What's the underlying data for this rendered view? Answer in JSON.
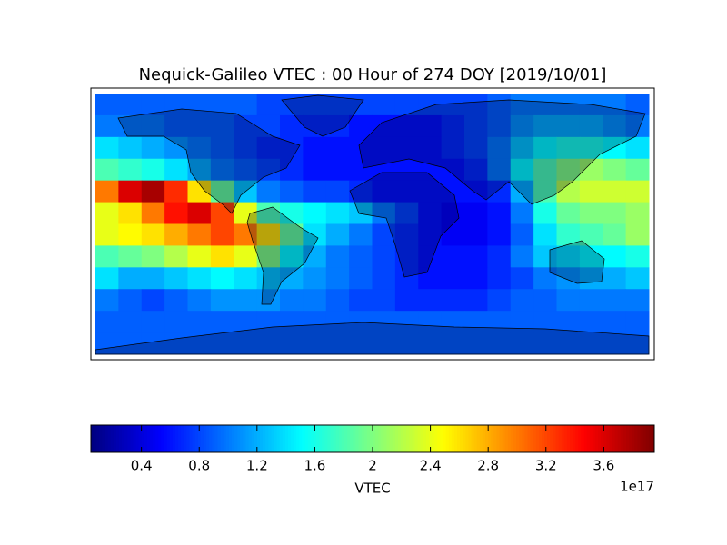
{
  "chart_data": {
    "type": "heatmap",
    "title": "Nequick-Galileo VTEC : 00 Hour of 274 DOY [2019/10/01]",
    "values": [
      [
        0.9,
        0.9,
        0.9,
        0.9,
        0.9,
        0.9,
        0.9,
        0.8,
        0.8,
        0.8,
        0.8,
        0.8,
        0.8,
        0.8,
        0.8,
        0.8,
        0.8,
        0.9,
        1.0,
        1.0,
        1.0,
        1.0,
        1.0,
        0.9
      ],
      [
        1.0,
        1.0,
        1.0,
        0.9,
        0.9,
        0.9,
        0.8,
        0.8,
        0.7,
        0.7,
        0.7,
        0.6,
        0.6,
        0.6,
        0.6,
        0.7,
        0.8,
        0.9,
        1.1,
        1.2,
        1.2,
        1.2,
        1.1,
        1.0
      ],
      [
        1.4,
        1.3,
        1.2,
        1.1,
        1.0,
        0.9,
        0.8,
        0.7,
        0.7,
        0.6,
        0.6,
        0.6,
        0.6,
        0.6,
        0.6,
        0.7,
        0.8,
        1.0,
        1.3,
        1.5,
        1.6,
        1.6,
        1.5,
        1.4
      ],
      [
        1.8,
        1.7,
        1.6,
        1.4,
        1.2,
        1.0,
        0.9,
        0.8,
        0.7,
        0.6,
        0.6,
        0.6,
        0.6,
        0.6,
        0.6,
        0.6,
        0.7,
        1.0,
        1.5,
        1.8,
        2.0,
        2.1,
        2.0,
        1.9
      ],
      [
        3.0,
        3.6,
        3.8,
        3.3,
        2.6,
        1.9,
        1.3,
        1.0,
        0.9,
        0.8,
        0.8,
        0.7,
        0.6,
        0.6,
        0.6,
        0.6,
        0.6,
        0.7,
        1.2,
        1.8,
        2.2,
        2.3,
        2.3,
        2.3
      ],
      [
        2.4,
        2.6,
        3.0,
        3.4,
        3.6,
        3.2,
        2.4,
        1.8,
        1.6,
        1.5,
        1.4,
        1.3,
        1.0,
        0.8,
        0.6,
        0.5,
        0.5,
        0.6,
        1.0,
        1.6,
        1.9,
        2.0,
        2.0,
        2.1
      ],
      [
        2.4,
        2.5,
        2.6,
        2.8,
        3.0,
        3.2,
        3.0,
        2.6,
        1.9,
        1.4,
        1.2,
        1.0,
        0.8,
        0.7,
        0.6,
        0.5,
        0.5,
        0.6,
        0.9,
        1.4,
        1.7,
        1.8,
        1.9,
        2.1
      ],
      [
        1.8,
        1.9,
        2.0,
        2.2,
        2.4,
        2.6,
        2.4,
        2.0,
        1.5,
        1.2,
        1.0,
        0.9,
        0.8,
        0.7,
        0.6,
        0.6,
        0.6,
        0.7,
        1.0,
        1.3,
        1.4,
        1.5,
        1.5,
        1.6
      ],
      [
        1.4,
        1.2,
        1.2,
        1.3,
        1.4,
        1.5,
        1.4,
        1.3,
        1.2,
        1.1,
        1.0,
        0.9,
        0.8,
        0.7,
        0.6,
        0.6,
        0.6,
        0.7,
        0.8,
        1.0,
        1.1,
        1.2,
        1.2,
        1.3
      ],
      [
        1.0,
        0.9,
        0.8,
        0.9,
        1.0,
        1.1,
        1.1,
        1.1,
        1.0,
        1.0,
        0.9,
        0.8,
        0.8,
        0.7,
        0.7,
        0.7,
        0.7,
        0.8,
        0.9,
        0.9,
        1.0,
        1.0,
        1.0,
        1.0
      ],
      [
        0.9,
        0.9,
        0.9,
        0.9,
        0.9,
        0.9,
        0.9,
        0.9,
        0.9,
        0.9,
        0.9,
        0.9,
        0.9,
        0.9,
        0.9,
        0.9,
        0.9,
        0.9,
        0.9,
        0.9,
        0.9,
        0.9,
        0.9,
        0.9
      ],
      [
        0.9,
        0.9,
        0.9,
        0.9,
        0.9,
        0.9,
        0.9,
        0.9,
        0.9,
        0.9,
        0.9,
        0.9,
        0.9,
        0.9,
        0.9,
        0.9,
        0.9,
        0.9,
        0.9,
        0.9,
        0.9,
        0.9,
        0.9,
        0.9
      ]
    ],
    "colormap": "jet",
    "clim": [
      0.05,
      3.95
    ],
    "cbar_ticks": [
      0.4,
      0.8,
      1.2,
      1.6,
      2.0,
      2.4,
      2.8,
      3.2,
      3.6
    ],
    "cbar_label": "VTEC",
    "cbar_offset": "1e17"
  }
}
